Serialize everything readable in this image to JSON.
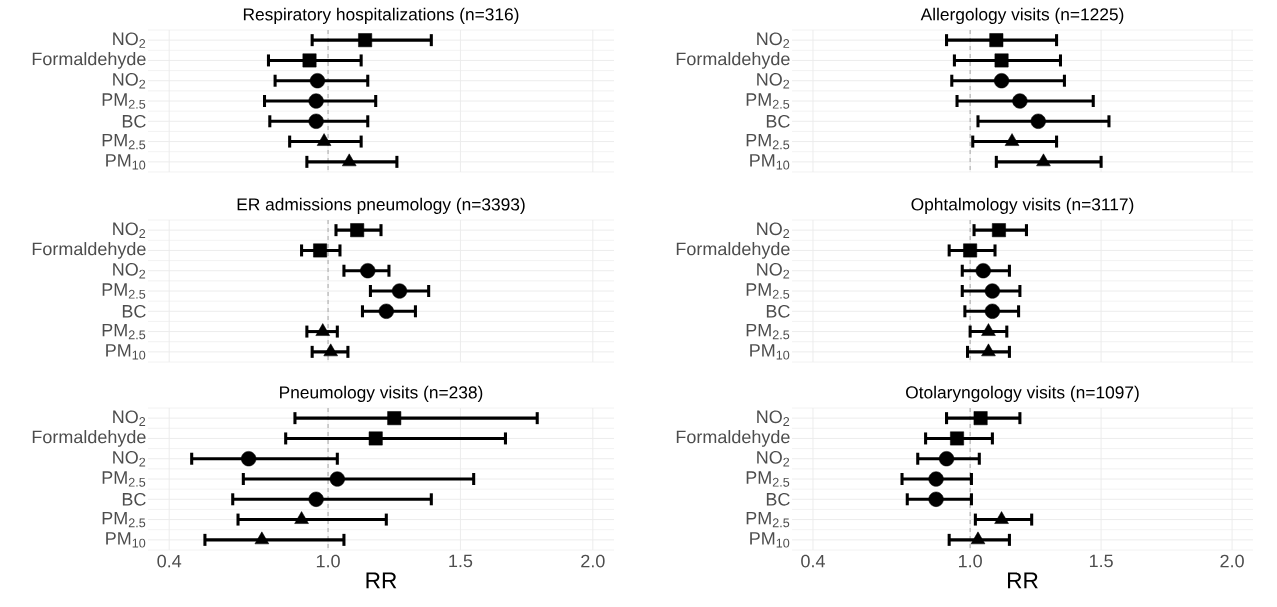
{
  "chart_data": [
    {
      "type": "scatter",
      "orientation": "horizontal",
      "title": "Respiratory hospitalizations (n=316)",
      "categories": [
        "NO$_{2}$",
        "Formaldehyde",
        "NO$_{2}$",
        "PM$_{2.5}$",
        "BC",
        "PM$_{2.5}$",
        "PM$_{10}$"
      ],
      "xlim": [
        0.32,
        2.08
      ],
      "xticks": [
        {
          "value": 0.4,
          "label": null
        },
        {
          "value": 1.0,
          "label": null
        },
        {
          "value": 1.5,
          "label": null
        },
        {
          "value": 2.0,
          "label": null
        }
      ],
      "tick_labels": "y",
      "grid": true,
      "ref_lines": [
        {
          "axis": "x",
          "value": 1.0,
          "color": "#808080",
          "line_style": "dashed"
        }
      ],
      "series": [
        {
          "marker": "square",
          "color": "#000000",
          "values": [
            1.14,
            0.93,
            null,
            null,
            null,
            null,
            null
          ],
          "errors": [
            [
              0.94,
              1.39
            ],
            [
              0.775,
              1.125
            ],
            null,
            null,
            null,
            null,
            null
          ]
        },
        {
          "marker": "circle",
          "color": "#000000",
          "values": [
            null,
            null,
            0.96,
            0.955,
            0.955,
            null,
            null
          ],
          "errors": [
            null,
            null,
            [
              0.8,
              1.15
            ],
            [
              0.76,
              1.18
            ],
            [
              0.78,
              1.15
            ],
            null,
            null
          ]
        },
        {
          "marker": "triangle",
          "color": "#000000",
          "values": [
            null,
            null,
            null,
            null,
            null,
            0.985,
            1.08
          ],
          "errors": [
            null,
            null,
            null,
            null,
            null,
            [
              0.855,
              1.125
            ],
            [
              0.92,
              1.26
            ]
          ]
        }
      ]
    },
    {
      "type": "scatter",
      "orientation": "horizontal",
      "title": "Allergology visits (n=1225)",
      "categories": [
        "NO$_{2}$",
        "Formaldehyde",
        "NO$_{2}$",
        "PM$_{2.5}$",
        "BC",
        "PM$_{2.5}$",
        "PM$_{10}$"
      ],
      "xlim": [
        0.32,
        2.08
      ],
      "xticks": [
        {
          "value": 0.4,
          "label": null
        },
        {
          "value": 1.0,
          "label": null
        },
        {
          "value": 1.5,
          "label": null
        },
        {
          "value": 2.0,
          "label": null
        }
      ],
      "tick_labels": "y",
      "grid": true,
      "ref_lines": [
        {
          "axis": "x",
          "value": 1.0,
          "color": "#808080",
          "line_style": "dashed"
        }
      ],
      "series": [
        {
          "marker": "square",
          "color": "#000000",
          "values": [
            1.1,
            1.12,
            null,
            null,
            null,
            null,
            null
          ],
          "errors": [
            [
              0.91,
              1.33
            ],
            [
              0.94,
              1.345
            ],
            null,
            null,
            null,
            null,
            null
          ]
        },
        {
          "marker": "circle",
          "color": "#000000",
          "values": [
            null,
            null,
            1.12,
            1.19,
            1.26,
            null,
            null
          ],
          "errors": [
            null,
            null,
            [
              0.93,
              1.36
            ],
            [
              0.95,
              1.47
            ],
            [
              1.03,
              1.53
            ],
            null,
            null
          ]
        },
        {
          "marker": "triangle",
          "color": "#000000",
          "values": [
            null,
            null,
            null,
            null,
            null,
            1.16,
            1.28
          ],
          "errors": [
            null,
            null,
            null,
            null,
            null,
            [
              1.01,
              1.33
            ],
            [
              1.1,
              1.5
            ]
          ]
        }
      ]
    },
    {
      "type": "scatter",
      "orientation": "horizontal",
      "title": "ER admissions pneumology (n=3393)",
      "categories": [
        "NO$_{2}$",
        "Formaldehyde",
        "NO$_{2}$",
        "PM$_{2.5}$",
        "BC",
        "PM$_{2.5}$",
        "PM$_{10}$"
      ],
      "xlim": [
        0.32,
        2.08
      ],
      "xticks": [
        {
          "value": 0.4,
          "label": null
        },
        {
          "value": 1.0,
          "label": null
        },
        {
          "value": 1.5,
          "label": null
        },
        {
          "value": 2.0,
          "label": null
        }
      ],
      "tick_labels": "y",
      "grid": true,
      "ref_lines": [
        {
          "axis": "x",
          "value": 1.0,
          "color": "#808080",
          "line_style": "dashed"
        }
      ],
      "series": [
        {
          "marker": "square",
          "color": "#000000",
          "values": [
            1.11,
            0.97,
            null,
            null,
            null,
            null,
            null
          ],
          "errors": [
            [
              1.03,
              1.2
            ],
            [
              0.9,
              1.045
            ],
            null,
            null,
            null,
            null,
            null
          ]
        },
        {
          "marker": "circle",
          "color": "#000000",
          "values": [
            null,
            null,
            1.15,
            1.27,
            1.22,
            null,
            null
          ],
          "errors": [
            null,
            null,
            [
              1.06,
              1.23
            ],
            [
              1.16,
              1.38
            ],
            [
              1.13,
              1.33
            ],
            null,
            null
          ]
        },
        {
          "marker": "triangle",
          "color": "#000000",
          "values": [
            null,
            null,
            null,
            null,
            null,
            0.98,
            1.01
          ],
          "errors": [
            null,
            null,
            null,
            null,
            null,
            [
              0.92,
              1.035
            ],
            [
              0.94,
              1.075
            ]
          ]
        }
      ]
    },
    {
      "type": "scatter",
      "orientation": "horizontal",
      "title": "Ophtalmology visits (n=3117)",
      "categories": [
        "NO$_{2}$",
        "Formaldehyde",
        "NO$_{2}$",
        "PM$_{2.5}$",
        "BC",
        "PM$_{2.5}$",
        "PM$_{10}$"
      ],
      "xlim": [
        0.32,
        2.08
      ],
      "xticks": [
        {
          "value": 0.4,
          "label": null
        },
        {
          "value": 1.0,
          "label": null
        },
        {
          "value": 1.5,
          "label": null
        },
        {
          "value": 2.0,
          "label": null
        }
      ],
      "tick_labels": "y",
      "grid": true,
      "ref_lines": [
        {
          "axis": "x",
          "value": 1.0,
          "color": "#808080",
          "line_style": "dashed"
        }
      ],
      "series": [
        {
          "marker": "square",
          "color": "#000000",
          "values": [
            1.11,
            1.0,
            null,
            null,
            null,
            null,
            null
          ],
          "errors": [
            [
              1.015,
              1.215
            ],
            [
              0.92,
              1.095
            ],
            null,
            null,
            null,
            null,
            null
          ]
        },
        {
          "marker": "circle",
          "color": "#000000",
          "values": [
            null,
            null,
            1.05,
            1.085,
            1.085,
            null,
            null
          ],
          "errors": [
            null,
            null,
            [
              0.97,
              1.15
            ],
            [
              0.97,
              1.19
            ],
            [
              0.98,
              1.185
            ],
            null,
            null
          ]
        },
        {
          "marker": "triangle",
          "color": "#000000",
          "values": [
            null,
            null,
            null,
            null,
            null,
            1.07,
            1.07
          ],
          "errors": [
            null,
            null,
            null,
            null,
            null,
            [
              1.0,
              1.14
            ],
            [
              0.99,
              1.15
            ]
          ]
        }
      ]
    },
    {
      "type": "scatter",
      "orientation": "horizontal",
      "title": "Pneumology visits (n=238)",
      "xlabel": "RR",
      "categories": [
        "NO$_{2}$",
        "Formaldehyde",
        "NO$_{2}$",
        "PM$_{2.5}$",
        "BC",
        "PM$_{2.5}$",
        "PM$_{10}$"
      ],
      "xlim": [
        0.32,
        2.08
      ],
      "xticks": [
        {
          "value": 0.4,
          "label": "0.4"
        },
        {
          "value": 1.0,
          "label": "1.0"
        },
        {
          "value": 1.5,
          "label": "1.5"
        },
        {
          "value": 2.0,
          "label": "2.0"
        }
      ],
      "grid": true,
      "ref_lines": [
        {
          "axis": "x",
          "value": 1.0,
          "color": "#808080",
          "line_style": "dashed"
        }
      ],
      "series": [
        {
          "marker": "square",
          "color": "#000000",
          "values": [
            1.25,
            1.18,
            null,
            null,
            null,
            null,
            null
          ],
          "errors": [
            [
              0.875,
              1.79
            ],
            [
              0.84,
              1.67
            ],
            null,
            null,
            null,
            null,
            null
          ]
        },
        {
          "marker": "circle",
          "color": "#000000",
          "values": [
            null,
            null,
            0.7,
            1.035,
            0.955,
            null,
            null
          ],
          "errors": [
            null,
            null,
            [
              0.485,
              1.035
            ],
            [
              0.68,
              1.55
            ],
            [
              0.64,
              1.39
            ],
            null,
            null
          ]
        },
        {
          "marker": "triangle",
          "color": "#000000",
          "values": [
            null,
            null,
            null,
            null,
            null,
            0.9,
            0.75
          ],
          "errors": [
            null,
            null,
            null,
            null,
            null,
            [
              0.66,
              1.22
            ],
            [
              0.535,
              1.06
            ]
          ]
        }
      ]
    },
    {
      "type": "scatter",
      "orientation": "horizontal",
      "title": "Otolaryngology visits (n=1097)",
      "xlabel": "RR",
      "categories": [
        "NO$_{2}$",
        "Formaldehyde",
        "NO$_{2}$",
        "PM$_{2.5}$",
        "BC",
        "PM$_{2.5}$",
        "PM$_{10}$"
      ],
      "xlim": [
        0.32,
        2.08
      ],
      "xticks": [
        {
          "value": 0.4,
          "label": "0.4"
        },
        {
          "value": 1.0,
          "label": "1.0"
        },
        {
          "value": 1.5,
          "label": "1.5"
        },
        {
          "value": 2.0,
          "label": "2.0"
        }
      ],
      "grid": true,
      "ref_lines": [
        {
          "axis": "x",
          "value": 1.0,
          "color": "#808080",
          "line_style": "dashed"
        }
      ],
      "series": [
        {
          "marker": "square",
          "color": "#000000",
          "values": [
            1.04,
            0.95,
            null,
            null,
            null,
            null,
            null
          ],
          "errors": [
            [
              0.91,
              1.19
            ],
            [
              0.83,
              1.085
            ],
            null,
            null,
            null,
            null,
            null
          ]
        },
        {
          "marker": "circle",
          "color": "#000000",
          "values": [
            null,
            null,
            0.91,
            0.87,
            0.87,
            null,
            null
          ],
          "errors": [
            null,
            null,
            [
              0.8,
              1.035
            ],
            [
              0.74,
              1.005
            ],
            [
              0.76,
              1.005
            ],
            null,
            null
          ]
        },
        {
          "marker": "triangle",
          "color": "#000000",
          "values": [
            null,
            null,
            null,
            null,
            null,
            1.12,
            1.03
          ],
          "errors": [
            null,
            null,
            null,
            null,
            null,
            [
              1.02,
              1.235
            ],
            [
              0.92,
              1.15
            ]
          ]
        }
      ]
    }
  ]
}
